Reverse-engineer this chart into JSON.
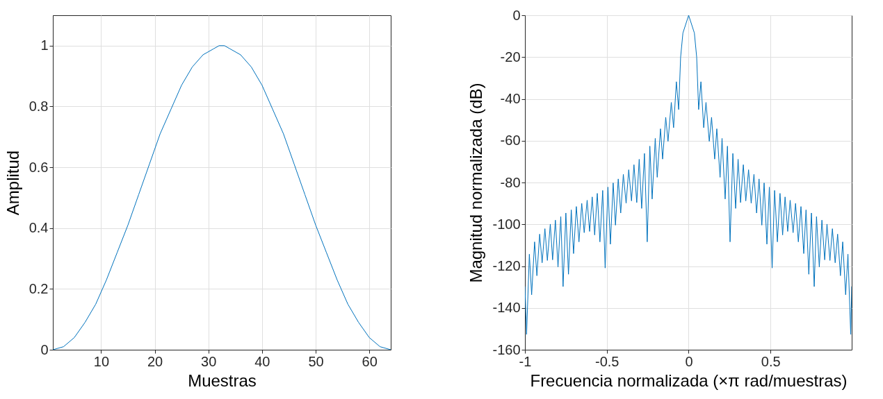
{
  "chart_data": [
    {
      "type": "line",
      "xlabel": "Muestras",
      "ylabel": "Amplitud",
      "color": "#0072bd",
      "grid": true,
      "xlim": [
        1,
        64
      ],
      "ylim": [
        0,
        1.1
      ],
      "xticks": [
        10,
        20,
        30,
        40,
        50,
        60
      ],
      "yticks": [
        0,
        0.2,
        0.4,
        0.6,
        0.8,
        1
      ],
      "x": [
        1,
        3,
        5,
        7,
        9,
        11,
        13,
        15,
        17,
        19,
        21,
        23,
        25,
        27,
        29,
        31,
        32,
        33,
        34,
        36,
        38,
        40,
        42,
        44,
        46,
        48,
        50,
        52,
        54,
        56,
        58,
        60,
        62,
        64
      ],
      "values": [
        0,
        0.01,
        0.04,
        0.09,
        0.15,
        0.23,
        0.32,
        0.41,
        0.51,
        0.61,
        0.71,
        0.79,
        0.87,
        0.93,
        0.97,
        0.99,
        1,
        1,
        0.99,
        0.97,
        0.93,
        0.87,
        0.79,
        0.71,
        0.61,
        0.51,
        0.41,
        0.32,
        0.23,
        0.15,
        0.09,
        0.04,
        0.01,
        0
      ]
    },
    {
      "type": "line",
      "xlabel": "Frecuencia normalizada  (×π rad/muestras)",
      "ylabel": "Magnitud normalizada (dB)",
      "color": "#0072bd",
      "grid": true,
      "xlim": [
        -1,
        0.996
      ],
      "ylim": [
        -160,
        0
      ],
      "xticks": [
        -1,
        -0.5,
        0,
        0.5
      ],
      "yticks": [
        -160,
        -140,
        -120,
        -100,
        -80,
        -60,
        -40,
        -20,
        0
      ],
      "x": [
        -1,
        -0.99,
        -0.973,
        -0.959,
        -0.941,
        -0.927,
        -0.91,
        -0.895,
        -0.878,
        -0.863,
        -0.845,
        -0.831,
        -0.814,
        -0.798,
        -0.781,
        -0.767,
        -0.75,
        -0.734,
        -0.717,
        -0.703,
        -0.686,
        -0.67,
        -0.653,
        -0.638,
        -0.62,
        -0.605,
        -0.589,
        -0.574,
        -0.558,
        -0.542,
        -0.525,
        -0.51,
        -0.493,
        -0.478,
        -0.461,
        -0.447,
        -0.43,
        -0.415,
        -0.399,
        -0.382,
        -0.366,
        -0.349,
        -0.334,
        -0.317,
        -0.302,
        -0.287,
        -0.27,
        -0.253,
        -0.237,
        -0.223,
        -0.204,
        -0.192,
        -0.172,
        -0.159,
        -0.14,
        -0.126,
        -0.106,
        -0.092,
        -0.075,
        -0.061,
        -0.049,
        -0.035,
        0,
        0.035,
        0.049,
        0.061,
        0.075,
        0.092,
        0.106,
        0.126,
        0.14,
        0.159,
        0.172,
        0.192,
        0.204,
        0.223,
        0.237,
        0.253,
        0.27,
        0.287,
        0.302,
        0.317,
        0.334,
        0.349,
        0.366,
        0.382,
        0.399,
        0.415,
        0.43,
        0.447,
        0.461,
        0.478,
        0.493,
        0.51,
        0.525,
        0.542,
        0.558,
        0.574,
        0.589,
        0.605,
        0.62,
        0.638,
        0.653,
        0.67,
        0.686,
        0.703,
        0.717,
        0.734,
        0.75,
        0.767,
        0.781,
        0.798,
        0.814,
        0.831,
        0.845,
        0.863,
        0.878,
        0.895,
        0.91,
        0.927,
        0.941,
        0.959,
        0.973,
        0.99,
        0.996
      ],
      "values": [
        -129.7,
        -152.7,
        -114.3,
        -133.7,
        -108.4,
        -124.6,
        -104.7,
        -118.4,
        -102.1,
        -117.3,
        -99.9,
        -117,
        -98,
        -120.4,
        -96.3,
        -129.8,
        -94.6,
        -123.9,
        -93.1,
        -114,
        -91.5,
        -108.4,
        -90,
        -104,
        -88.5,
        -103.4,
        -86.9,
        -105.1,
        -85.2,
        -108.4,
        -83.8,
        -120.9,
        -82.2,
        -109.5,
        -80.2,
        -100.4,
        -78.3,
        -94.6,
        -76.1,
        -89.9,
        -73.9,
        -88.8,
        -71.5,
        -89.6,
        -68.9,
        -92.4,
        -66.1,
        -108.4,
        -62.6,
        -87.9,
        -58.9,
        -77.5,
        -54.3,
        -68.8,
        -48.8,
        -60.3,
        -41.7,
        -53.8,
        -31.8,
        -45.1,
        -20,
        -8.5,
        0,
        -8.5,
        -20,
        -45.1,
        -31.8,
        -53.8,
        -41.7,
        -60.3,
        -48.8,
        -68.8,
        -54.3,
        -77.5,
        -58.9,
        -87.9,
        -62.6,
        -108.4,
        -66.1,
        -92.4,
        -68.9,
        -89.6,
        -71.5,
        -88.8,
        -73.9,
        -89.9,
        -76.1,
        -94.6,
        -78.3,
        -100.4,
        -80.2,
        -109.5,
        -82.2,
        -120.9,
        -83.8,
        -108.4,
        -85.2,
        -105.1,
        -86.9,
        -103.4,
        -88.5,
        -104,
        -90,
        -108.4,
        -91.5,
        -114,
        -93.1,
        -123.9,
        -94.6,
        -129.8,
        -96.3,
        -120.4,
        -98,
        -117,
        -99.9,
        -117.3,
        -102.1,
        -118.4,
        -104.7,
        -124.6,
        -108.4,
        -133.7,
        -114.3,
        -152.7,
        -129.7
      ]
    }
  ]
}
